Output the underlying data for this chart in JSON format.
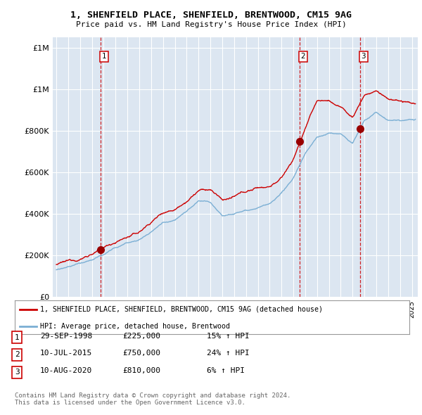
{
  "title": "1, SHENFIELD PLACE, SHENFIELD, BRENTWOOD, CM15 9AG",
  "subtitle": "Price paid vs. HM Land Registry's House Price Index (HPI)",
  "background_color": "#dce6f1",
  "plot_bg_color": "#dce6f1",
  "legend_label_red": "1, SHENFIELD PLACE, SHENFIELD, BRENTWOOD, CM15 9AG (detached house)",
  "legend_label_blue": "HPI: Average price, detached house, Brentwood",
  "footer": "Contains HM Land Registry data © Crown copyright and database right 2024.\nThis data is licensed under the Open Government Licence v3.0.",
  "sales": [
    {
      "num": 1,
      "date": "29-SEP-1998",
      "price": 225000,
      "pct": "15%",
      "dir": "↑",
      "year": 1998.75
    },
    {
      "num": 2,
      "date": "10-JUL-2015",
      "price": 750000,
      "pct": "24%",
      "dir": "↑",
      "year": 2015.52
    },
    {
      "num": 3,
      "date": "10-AUG-2020",
      "price": 810000,
      "pct": "6%",
      "dir": "↑",
      "year": 2020.61
    }
  ],
  "ylim": [
    0,
    1250000
  ],
  "yticks": [
    0,
    200000,
    400000,
    600000,
    800000,
    1000000,
    1200000
  ],
  "xlim_start": 1994.7,
  "xlim_end": 2025.5,
  "red_color": "#cc0000",
  "blue_color": "#7bafd4",
  "sale_marker_color": "#990000",
  "dashed_line_color": "#cc0000",
  "anchors_x_red": [
    1995,
    1996,
    1997,
    1998,
    1999,
    2000,
    2001,
    2002,
    2003,
    2004,
    2005,
    2006,
    2007,
    2008,
    2009,
    2010,
    2011,
    2012,
    2013,
    2014,
    2015,
    2016,
    2017,
    2018,
    2019,
    2020,
    2021,
    2022,
    2023,
    2024,
    2025
  ],
  "anchors_y_red": [
    155000,
    165000,
    180000,
    210000,
    235000,
    265000,
    290000,
    310000,
    360000,
    410000,
    430000,
    480000,
    530000,
    530000,
    480000,
    490000,
    510000,
    530000,
    540000,
    580000,
    670000,
    820000,
    950000,
    950000,
    920000,
    870000,
    980000,
    1000000,
    960000,
    950000,
    930000
  ],
  "anchors_x_blue": [
    1995,
    1996,
    1997,
    1998,
    1999,
    2000,
    2001,
    2002,
    2003,
    2004,
    2005,
    2006,
    2007,
    2008,
    2009,
    2010,
    2011,
    2012,
    2013,
    2014,
    2015,
    2016,
    2017,
    2018,
    2019,
    2020,
    2021,
    2022,
    2023,
    2024,
    2025
  ],
  "anchors_y_blue": [
    130000,
    140000,
    155000,
    175000,
    200000,
    230000,
    255000,
    275000,
    310000,
    355000,
    375000,
    420000,
    465000,
    455000,
    400000,
    415000,
    435000,
    450000,
    465000,
    505000,
    580000,
    700000,
    780000,
    800000,
    795000,
    750000,
    860000,
    900000,
    860000,
    855000,
    855000
  ]
}
